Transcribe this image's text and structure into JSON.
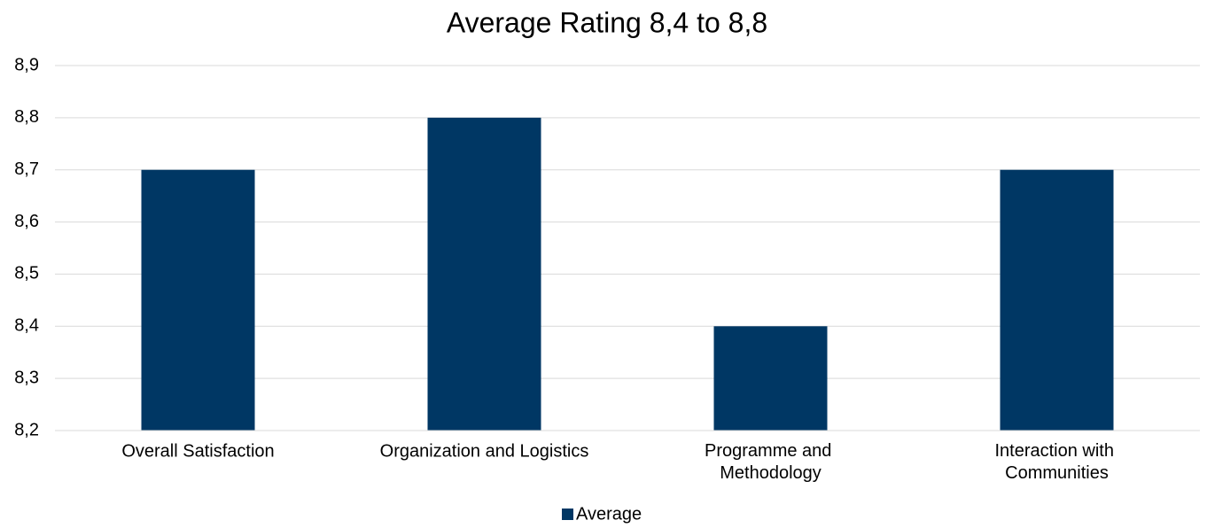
{
  "chart_data": {
    "type": "bar",
    "title": "Average Rating 8,4 to 8,8",
    "categories": [
      "Overall Satisfaction",
      "Organization and Logistics",
      "Programme and Methodology",
      "Interaction with Communities"
    ],
    "series": [
      {
        "name": "Average",
        "color": "#003764",
        "values": [
          8.7,
          8.8,
          8.4,
          8.7
        ]
      }
    ],
    "ylim": [
      8.2,
      8.9
    ],
    "yticks": [
      {
        "value": 8.2,
        "label": "8,2"
      },
      {
        "value": 8.3,
        "label": "8,3"
      },
      {
        "value": 8.4,
        "label": "8,4"
      },
      {
        "value": 8.5,
        "label": "8,5"
      },
      {
        "value": 8.6,
        "label": "8,6"
      },
      {
        "value": 8.7,
        "label": "8,7"
      },
      {
        "value": 8.8,
        "label": "8,8"
      },
      {
        "value": 8.9,
        "label": "8,9"
      }
    ],
    "grid": true,
    "legend": "bottom"
  }
}
